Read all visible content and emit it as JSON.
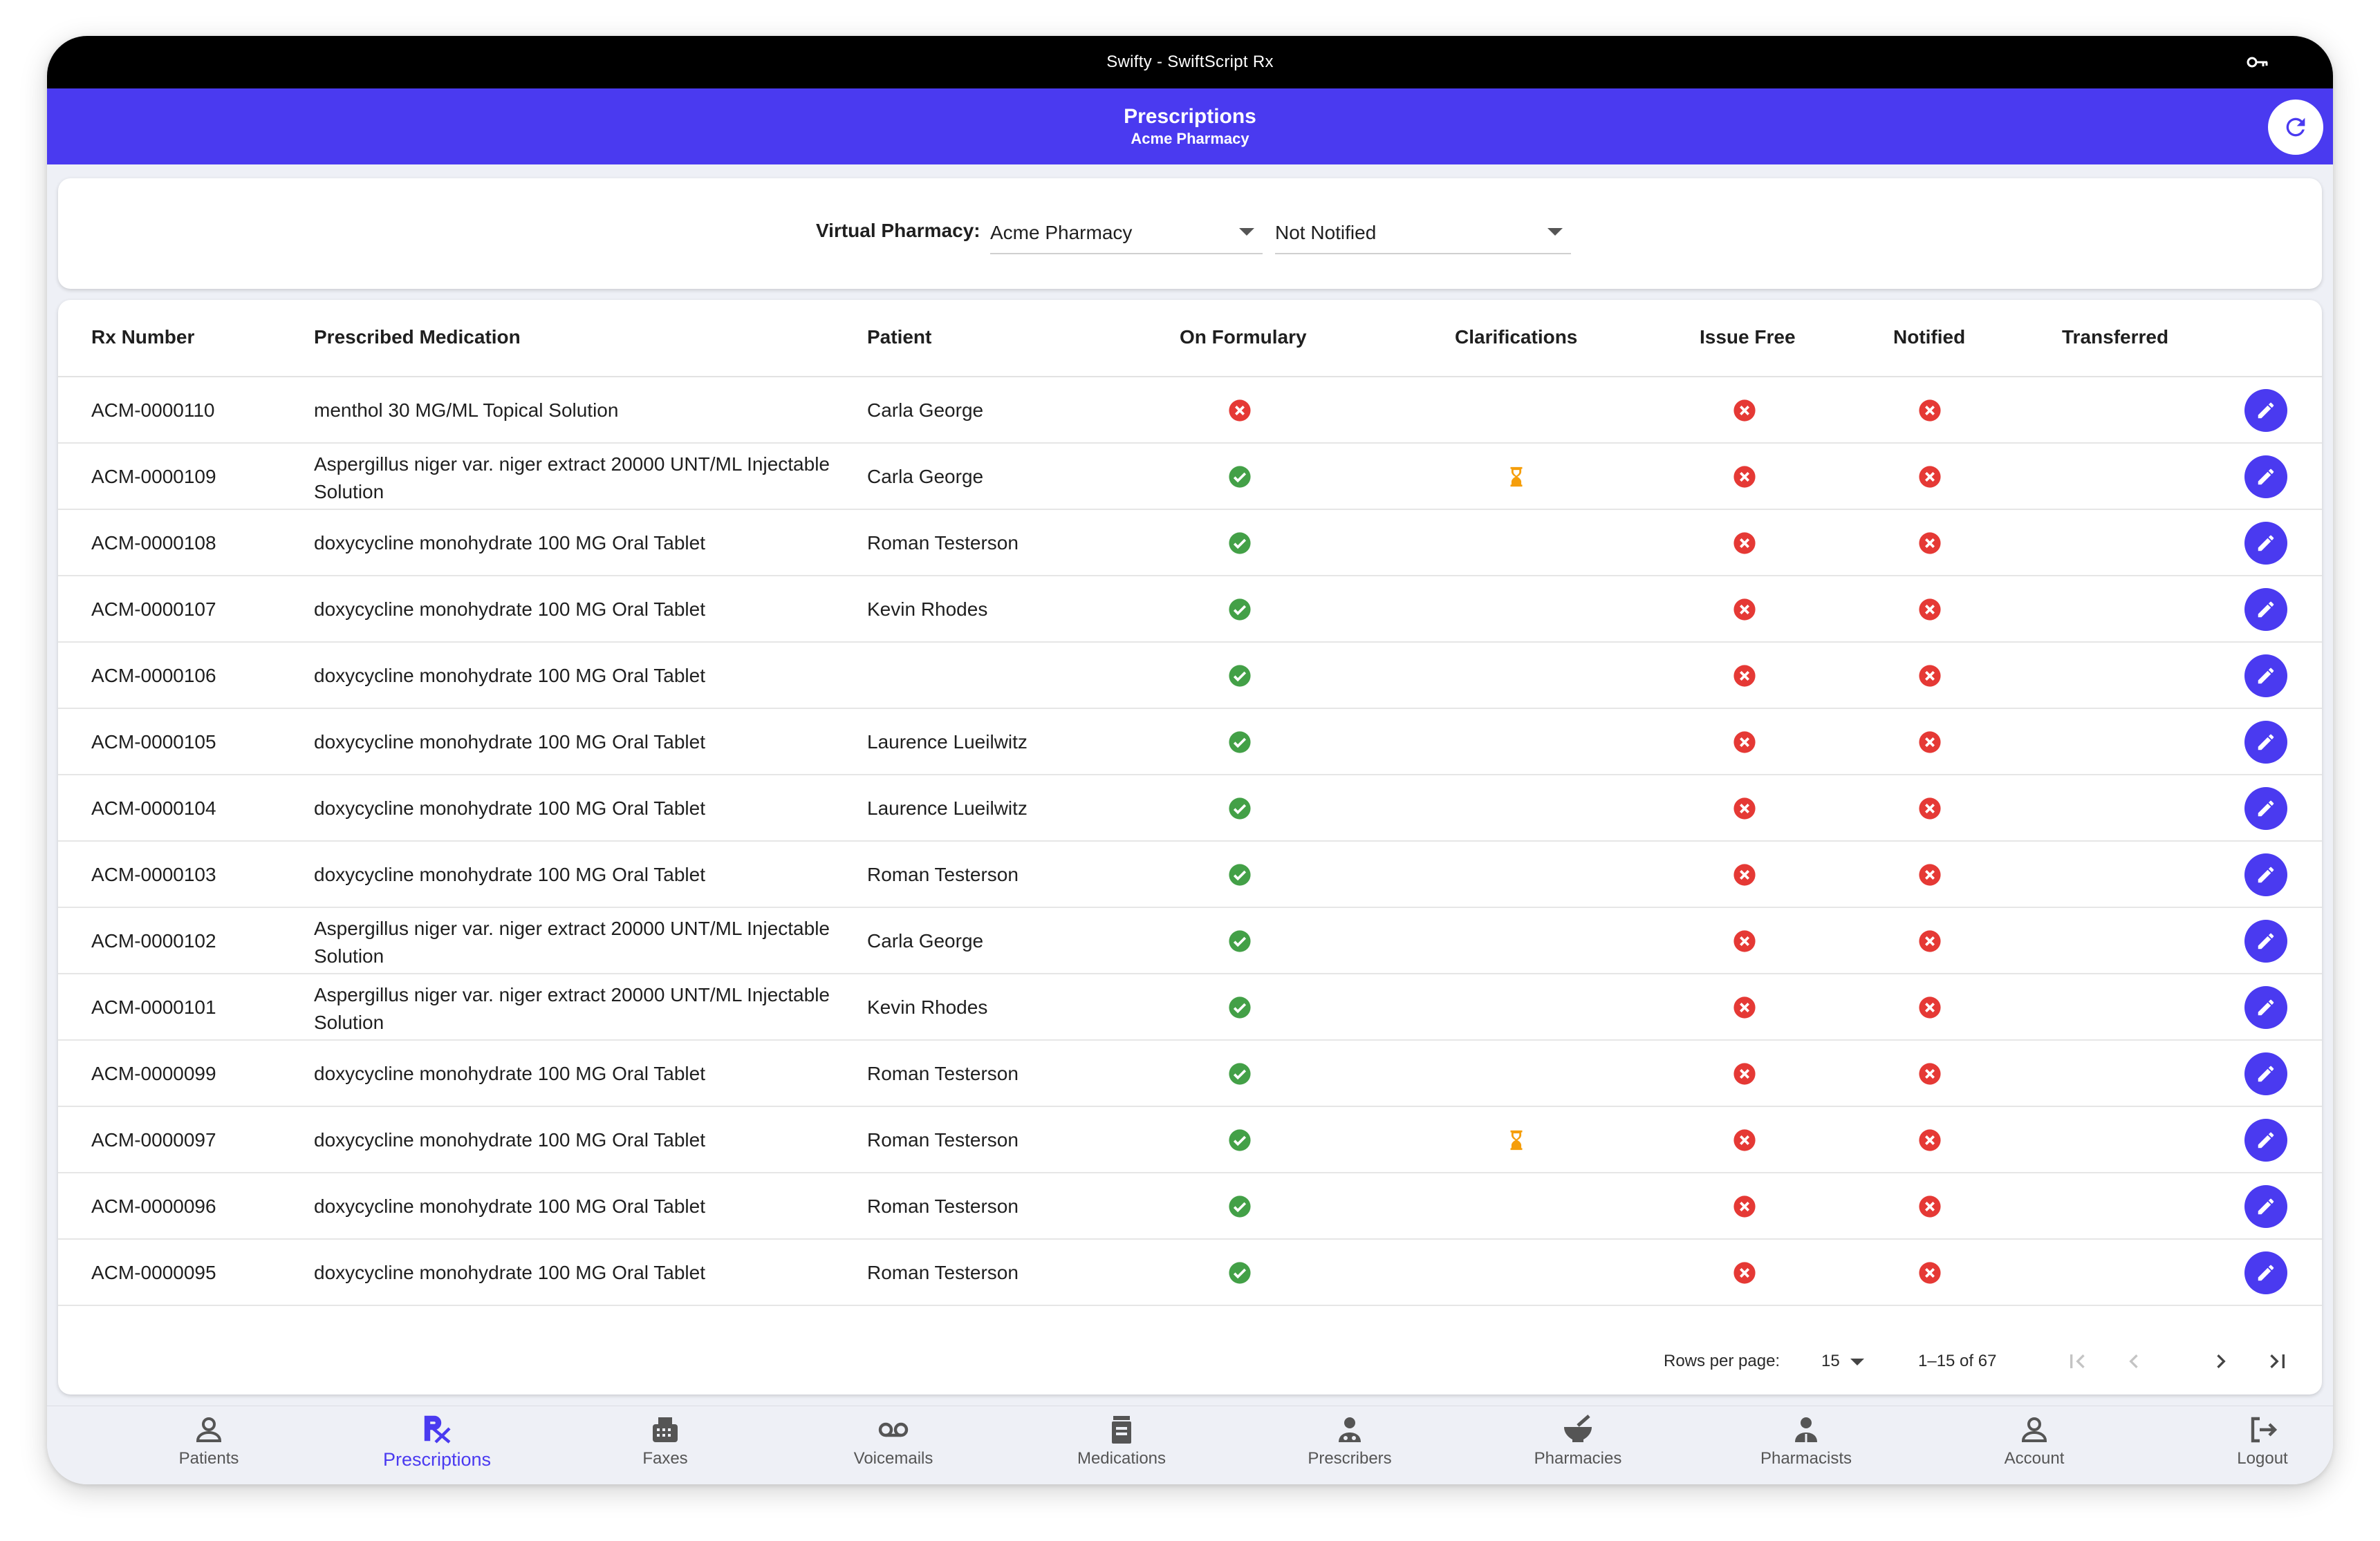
{
  "window": {
    "title": "Swifty - SwiftScript Rx"
  },
  "appbar": {
    "title": "Prescriptions",
    "subtitle": "Acme Pharmacy"
  },
  "filters": {
    "label": "Virtual Pharmacy:",
    "pharmacy_value": "Acme Pharmacy",
    "status_value": "Not Notified"
  },
  "table": {
    "headers": {
      "rx_number": "Rx Number",
      "medication": "Prescribed Medication",
      "patient": "Patient",
      "on_formulary": "On Formulary",
      "clarifications": "Clarifications",
      "issue_free": "Issue Free",
      "notified": "Notified",
      "transferred": "Transferred"
    },
    "rows": [
      {
        "rx": "ACM-0000110",
        "med": "menthol 30 MG/ML Topical Solution",
        "patient": "Carla George",
        "on_formulary": "no",
        "clarification": "",
        "issue_free": "no",
        "notified": "no"
      },
      {
        "rx": "ACM-0000109",
        "med": "Aspergillus niger var. niger extract 20000 UNT/ML Injectable Solution",
        "patient": "Carla George",
        "on_formulary": "yes",
        "clarification": "pending",
        "issue_free": "no",
        "notified": "no"
      },
      {
        "rx": "ACM-0000108",
        "med": "doxycycline monohydrate 100 MG Oral Tablet",
        "patient": "Roman Testerson",
        "on_formulary": "yes",
        "clarification": "",
        "issue_free": "no",
        "notified": "no"
      },
      {
        "rx": "ACM-0000107",
        "med": "doxycycline monohydrate 100 MG Oral Tablet",
        "patient": "Kevin Rhodes",
        "on_formulary": "yes",
        "clarification": "",
        "issue_free": "no",
        "notified": "no"
      },
      {
        "rx": "ACM-0000106",
        "med": "doxycycline monohydrate 100 MG Oral Tablet",
        "patient": "",
        "on_formulary": "yes",
        "clarification": "",
        "issue_free": "no",
        "notified": "no"
      },
      {
        "rx": "ACM-0000105",
        "med": "doxycycline monohydrate 100 MG Oral Tablet",
        "patient": "Laurence Lueilwitz",
        "on_formulary": "yes",
        "clarification": "",
        "issue_free": "no",
        "notified": "no"
      },
      {
        "rx": "ACM-0000104",
        "med": "doxycycline monohydrate 100 MG Oral Tablet",
        "patient": "Laurence Lueilwitz",
        "on_formulary": "yes",
        "clarification": "",
        "issue_free": "no",
        "notified": "no"
      },
      {
        "rx": "ACM-0000103",
        "med": "doxycycline monohydrate 100 MG Oral Tablet",
        "patient": "Roman Testerson",
        "on_formulary": "yes",
        "clarification": "",
        "issue_free": "no",
        "notified": "no"
      },
      {
        "rx": "ACM-0000102",
        "med": "Aspergillus niger var. niger extract 20000 UNT/ML Injectable Solution",
        "patient": "Carla George",
        "on_formulary": "yes",
        "clarification": "",
        "issue_free": "no",
        "notified": "no"
      },
      {
        "rx": "ACM-0000101",
        "med": "Aspergillus niger var. niger extract 20000 UNT/ML Injectable Solution",
        "patient": "Kevin Rhodes",
        "on_formulary": "yes",
        "clarification": "",
        "issue_free": "no",
        "notified": "no"
      },
      {
        "rx": "ACM-0000099",
        "med": "doxycycline monohydrate 100 MG Oral Tablet",
        "patient": "Roman Testerson",
        "on_formulary": "yes",
        "clarification": "",
        "issue_free": "no",
        "notified": "no"
      },
      {
        "rx": "ACM-0000097",
        "med": "doxycycline monohydrate 100 MG Oral Tablet",
        "patient": "Roman Testerson",
        "on_formulary": "yes",
        "clarification": "pending",
        "issue_free": "no",
        "notified": "no"
      },
      {
        "rx": "ACM-0000096",
        "med": "doxycycline monohydrate 100 MG Oral Tablet",
        "patient": "Roman Testerson",
        "on_formulary": "yes",
        "clarification": "",
        "issue_free": "no",
        "notified": "no"
      },
      {
        "rx": "ACM-0000095",
        "med": "doxycycline monohydrate 100 MG Oral Tablet",
        "patient": "Roman Testerson",
        "on_formulary": "yes",
        "clarification": "",
        "issue_free": "no",
        "notified": "no"
      }
    ]
  },
  "pagination": {
    "rows_label": "Rows per page:",
    "rows_value": "15",
    "range": "1–15 of 67"
  },
  "nav": {
    "active": "Prescriptions",
    "items": [
      {
        "label": "Patients",
        "icon": "person-icon"
      },
      {
        "label": "Prescriptions",
        "icon": "rx-icon"
      },
      {
        "label": "Faxes",
        "icon": "fax-icon"
      },
      {
        "label": "Voicemails",
        "icon": "voicemail-icon"
      },
      {
        "label": "Medications",
        "icon": "medication-icon"
      },
      {
        "label": "Prescribers",
        "icon": "prescriber-icon"
      },
      {
        "label": "Pharmacies",
        "icon": "mortar-pestle-icon"
      },
      {
        "label": "Pharmacists",
        "icon": "pharmacist-icon"
      },
      {
        "label": "Account",
        "icon": "account-icon"
      },
      {
        "label": "Logout",
        "icon": "logout-icon"
      }
    ]
  },
  "colors": {
    "primary": "#4a3af0",
    "success": "#43a047",
    "error": "#e53935",
    "warning": "#f59e0b"
  }
}
